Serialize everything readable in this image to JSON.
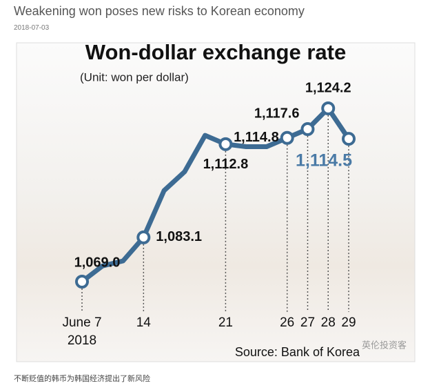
{
  "header": {
    "title": "Weakening won poses new risks to Korean economy",
    "date": "2018-07-03"
  },
  "chart_data": {
    "type": "line",
    "title": "Won-dollar exchange rate",
    "subtitle": "(Unit: won per dollar)",
    "categories": [
      "June 7",
      null,
      null,
      "14",
      null,
      null,
      null,
      "21",
      null,
      null,
      "26",
      "27",
      "28",
      "29"
    ],
    "year_label": "2018",
    "series": [
      {
        "name": "Won-dollar exchange rate",
        "color": "#3d6b93",
        "values": [
          1069.0,
          1074,
          1075.6,
          1083.1,
          1098,
          1104,
          1115.6,
          1112.8,
          1112,
          1112,
          1114.8,
          1117.6,
          1124.2,
          1114.5
        ],
        "value_labels": [
          "1,069.0",
          null,
          null,
          "1,083.1",
          null,
          null,
          null,
          "1,112.8",
          null,
          null,
          "1,114.8",
          "1,117.6",
          "1,124.2",
          "1,114.5"
        ]
      }
    ],
    "highlight_color": "#4a7aa6",
    "source": "Source: Bank of Korea"
  },
  "watermark": "英伦投资客",
  "caption": "不断贬值的韩币为韩国经济提出了新风险"
}
